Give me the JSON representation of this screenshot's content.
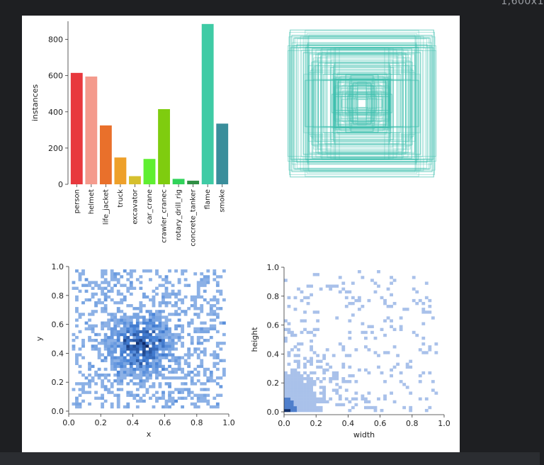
{
  "window": {
    "corner_label": "1,600x1"
  },
  "colors": {
    "background": "#1e1f22",
    "canvas": "#ffffff",
    "box_outline": "#3cbfae",
    "hist_dark": "#12306b",
    "hist_mid": "#4f8bdc",
    "hist_light": "#a9c1ea"
  },
  "chart_data": [
    {
      "id": "class-instances",
      "type": "bar",
      "title": "",
      "xlabel": "",
      "ylabel": "instances",
      "ylim": [
        0,
        900
      ],
      "yticks": [
        0,
        200,
        400,
        600,
        800
      ],
      "categories": [
        "person",
        "helmet",
        "life_jacket",
        "truck",
        "excavator",
        "car_crane",
        "crawler_cranec",
        "rotary_drill_rig",
        "concrete_tanker",
        "flame",
        "smoke"
      ],
      "values": [
        615,
        595,
        325,
        148,
        45,
        140,
        415,
        30,
        20,
        885,
        335
      ],
      "bar_colors": [
        "#e8383d",
        "#f49a8c",
        "#e9702b",
        "#eea02a",
        "#d6c02e",
        "#5fef30",
        "#7fcc0f",
        "#31d35a",
        "#2f8f44",
        "#3fcba5",
        "#3a8e9b"
      ]
    },
    {
      "id": "box-outlines",
      "type": "box-overlay",
      "note_color": "#3cbfae",
      "grid": false
    },
    {
      "id": "xy-distribution",
      "type": "heatmap",
      "xlabel": "x",
      "ylabel": "y",
      "xlim": [
        0,
        1
      ],
      "ylim": [
        0,
        1
      ],
      "xticks": [
        0.0,
        0.2,
        0.4,
        0.6,
        0.8,
        1.0
      ],
      "yticks": [
        0.0,
        0.2,
        0.4,
        0.6,
        0.8,
        1.0
      ],
      "bins": 50,
      "density_peak": [
        0.45,
        0.45
      ]
    },
    {
      "id": "wh-distribution",
      "type": "heatmap",
      "xlabel": "width",
      "ylabel": "height",
      "xlim": [
        0,
        1
      ],
      "ylim": [
        0,
        1
      ],
      "xticks": [
        0.0,
        0.2,
        0.4,
        0.6,
        0.8,
        1.0
      ],
      "yticks": [
        0.0,
        0.2,
        0.4,
        0.6,
        0.8,
        1.0
      ],
      "bins": 50,
      "density_peak": [
        0.0,
        0.0
      ]
    }
  ]
}
